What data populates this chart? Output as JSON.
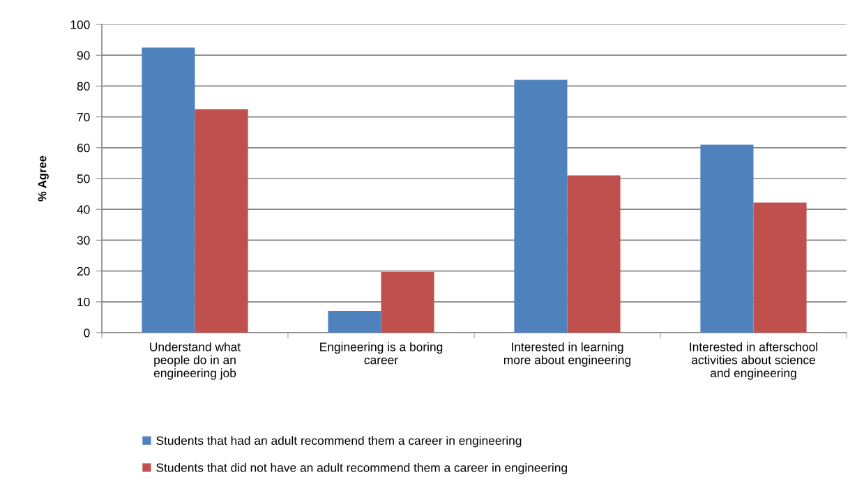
{
  "chart_data": {
    "type": "bar",
    "categories": [
      "Understand what\npeople do in an\nengineering job",
      "Engineering is a boring\ncareer",
      "Interested in learning\nmore about engineering",
      "Interested in afterschool\nactivities about science\nand engineering"
    ],
    "series": [
      {
        "name": "Students that had an adult recommend them a career in engineering",
        "color": "#4f81bd",
        "values": [
          92.5,
          7,
          82,
          61
        ]
      },
      {
        "name": "Students that did not have an adult recommend them a career in engineering",
        "color": "#c0504d",
        "values": [
          72.5,
          19.7,
          51,
          42.2
        ]
      }
    ],
    "ylabel": "% Agree",
    "ylim": [
      0,
      100
    ],
    "yticks": [
      0,
      10,
      20,
      30,
      40,
      50,
      60,
      70,
      80,
      90,
      100
    ],
    "grid": "y",
    "legend": "bottom"
  }
}
